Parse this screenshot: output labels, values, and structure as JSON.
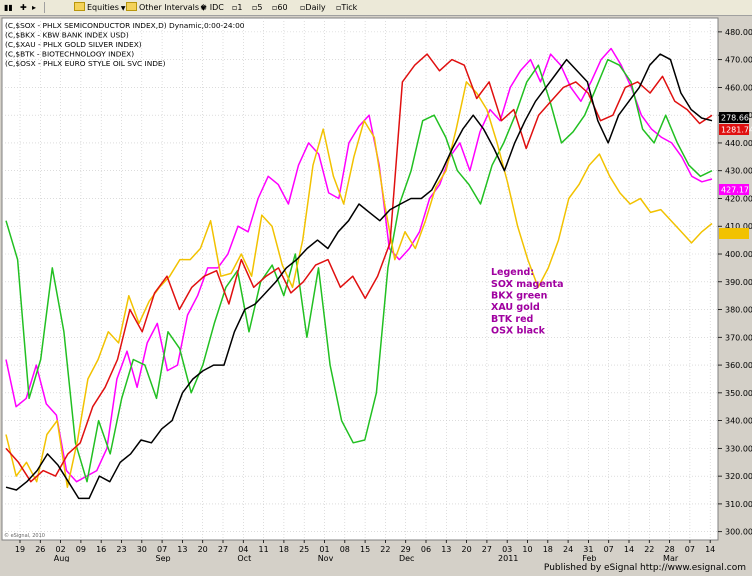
{
  "toolbar": {
    "equities": "Equities",
    "other_intervals": "Other Intervals",
    "idc": "IDC",
    "i1": "1",
    "i5": "5",
    "i60": "60",
    "daily": "Daily",
    "tick": "Tick"
  },
  "footer": {
    "published": "Published by eSignal  http://www.esignal.com"
  },
  "chart_data": {
    "type": "line",
    "header_lines": [
      "(C,$SOX - PHLX SEMICONDUCTOR INDEX,D) Dynamic,0:00-24:00",
      "(C,$BKX - KBW BANK INDEX USD)",
      "(C,$XAU - PHLX GOLD SILVER INDEX)",
      "(C,$BTK - BIOTECHNOLOGY INDEX)",
      "(C,$OSX - PHLX EURO STYLE OIL SVC INDE)"
    ],
    "y_ticks": [
      300,
      310,
      320,
      330,
      340,
      350,
      360,
      370,
      380,
      390,
      400,
      410,
      420,
      430,
      440,
      450,
      460,
      470,
      480
    ],
    "ylim": [
      297,
      485
    ],
    "x_ticks": [
      "19",
      "26",
      "02",
      "09",
      "16",
      "23",
      "30",
      "07",
      "13",
      "20",
      "27",
      "04",
      "11",
      "18",
      "25",
      "01",
      "08",
      "15",
      "22",
      "29",
      "06",
      "13",
      "20",
      "27",
      "03",
      "10",
      "18",
      "24",
      "31",
      "07",
      "14",
      "22",
      "28",
      "07",
      "14"
    ],
    "month_labels": [
      {
        "label": "Aug",
        "tick": 2
      },
      {
        "label": "Sep",
        "tick": 7
      },
      {
        "label": "Oct",
        "tick": 11
      },
      {
        "label": "Nov",
        "tick": 15
      },
      {
        "label": "Dec",
        "tick": 19
      },
      {
        "label": "2011",
        "tick": 24
      },
      {
        "label": "Feb",
        "tick": 28
      },
      {
        "label": "Mar",
        "tick": 32
      }
    ],
    "last_values": [
      {
        "text": "278.66",
        "series": "OSX"
      },
      {
        "text": "1281.74",
        "series": "BTK"
      },
      {
        "text": "427.17",
        "series": "SOX"
      },
      {
        "text": "210.94",
        "series": "XAU"
      }
    ],
    "legend": {
      "title": "Legend:",
      "items": [
        "SOX magenta",
        "BKX green",
        "XAU gold",
        "BTK red",
        "OSX black"
      ]
    },
    "watermark": "© eSignal, 2010",
    "series": [
      {
        "ticker": "SOX",
        "color": "#ff00ff",
        "values": [
          362,
          345,
          348,
          360,
          346,
          342,
          322,
          318,
          320,
          322,
          330,
          355,
          365,
          352,
          368,
          375,
          358,
          360,
          378,
          385,
          395,
          395,
          400,
          410,
          408,
          420,
          428,
          425,
          418,
          432,
          440,
          436,
          422,
          420,
          440,
          446,
          450,
          432,
          402,
          398,
          402,
          408,
          420,
          425,
          435,
          440,
          430,
          444,
          452,
          448,
          460,
          466,
          470,
          462,
          472,
          468,
          460,
          455,
          462,
          470,
          474,
          468,
          460,
          450,
          445,
          442,
          440,
          435,
          428,
          426,
          427
        ]
      },
      {
        "ticker": "BKX",
        "color": "#22c022",
        "values": [
          412,
          398,
          348,
          362,
          395,
          372,
          332,
          318,
          340,
          328,
          348,
          362,
          360,
          348,
          372,
          366,
          350,
          360,
          375,
          388,
          394,
          372,
          390,
          396,
          385,
          400,
          370,
          395,
          360,
          340,
          332,
          333,
          350,
          395,
          418,
          430,
          448,
          450,
          442,
          430,
          425,
          418,
          432,
          440,
          450,
          462,
          468,
          455,
          440,
          444,
          450,
          460,
          470,
          468,
          462,
          445,
          440,
          450,
          440,
          432,
          428,
          430
        ]
      },
      {
        "ticker": "XAU",
        "color": "#f2c200",
        "values": [
          335,
          320,
          325,
          318,
          335,
          340,
          316,
          333,
          355,
          362,
          372,
          368,
          385,
          375,
          383,
          388,
          392,
          398,
          398,
          402,
          412,
          392,
          393,
          400,
          392,
          414,
          410,
          396,
          388,
          405,
          432,
          445,
          428,
          418,
          435,
          448,
          442,
          418,
          398,
          408,
          402,
          412,
          424,
          430,
          445,
          462,
          458,
          452,
          440,
          426,
          410,
          398,
          388,
          395,
          405,
          420,
          425,
          432,
          436,
          428,
          422,
          418,
          420,
          415,
          416,
          412,
          408,
          404,
          408,
          411
        ]
      },
      {
        "ticker": "BTK",
        "color": "#e01010",
        "values": [
          330,
          325,
          318,
          322,
          320,
          328,
          332,
          345,
          352,
          362,
          380,
          372,
          386,
          392,
          380,
          388,
          392,
          394,
          382,
          398,
          388,
          392,
          395,
          386,
          390,
          396,
          398,
          388,
          392,
          384,
          392,
          404,
          462,
          468,
          472,
          466,
          470,
          468,
          456,
          462,
          448,
          452,
          438,
          450,
          455,
          460,
          462,
          458,
          448,
          450,
          460,
          462,
          458,
          464,
          455,
          452,
          447,
          450
        ]
      },
      {
        "ticker": "OSX",
        "color": "#000000",
        "values": [
          316,
          315,
          318,
          322,
          328,
          324,
          318,
          312,
          312,
          320,
          318,
          325,
          328,
          333,
          332,
          337,
          340,
          350,
          355,
          358,
          360,
          360,
          372,
          380,
          382,
          386,
          390,
          395,
          398,
          402,
          405,
          402,
          408,
          412,
          418,
          415,
          412,
          416,
          418,
          420,
          420,
          423,
          430,
          438,
          445,
          450,
          445,
          438,
          430,
          440,
          448,
          455,
          460,
          465,
          470,
          466,
          462,
          448,
          440,
          450,
          455,
          460,
          468,
          472,
          470,
          458,
          452,
          449,
          448
        ]
      }
    ]
  }
}
